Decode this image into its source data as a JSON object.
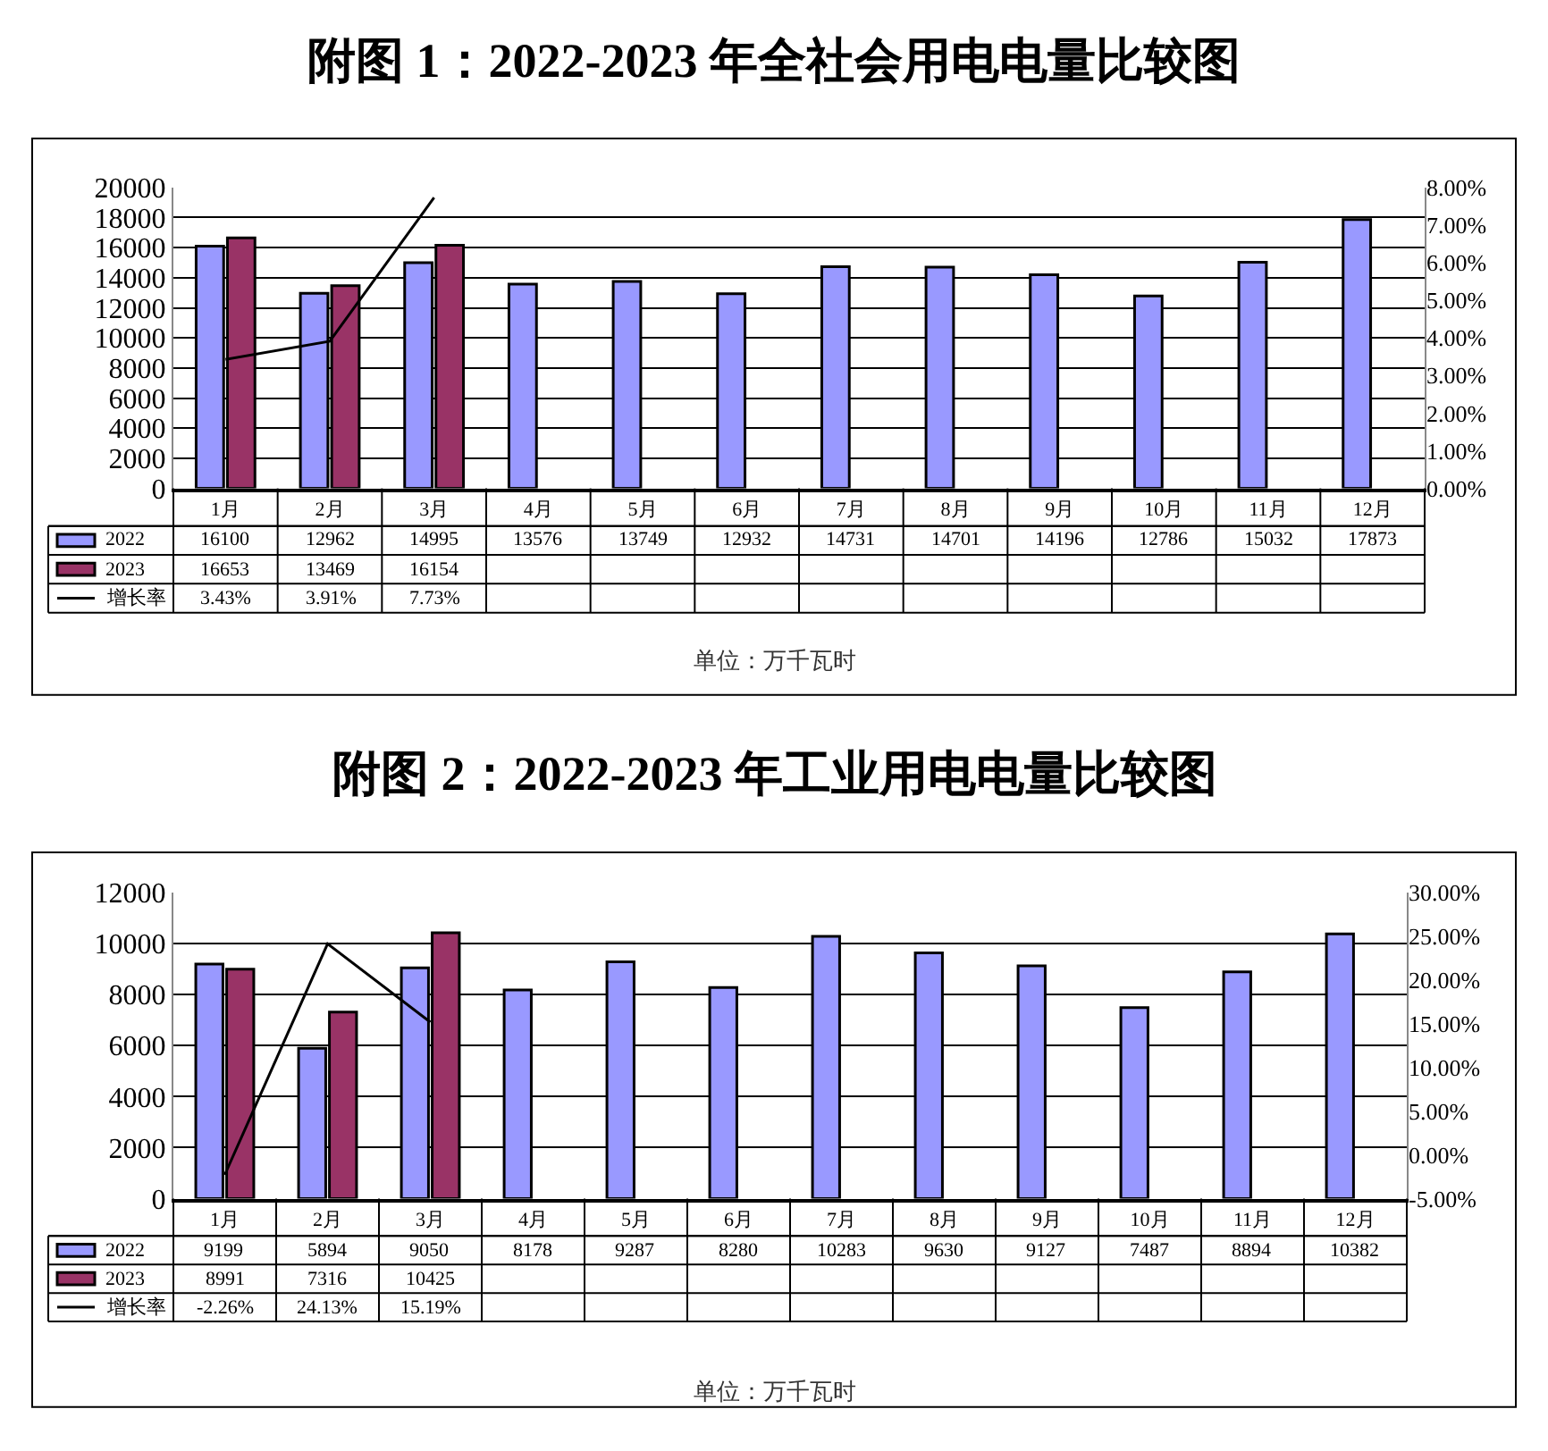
{
  "chart_data": [
    {
      "type": "bar",
      "title": "附图 1：2022-2023 年全社会用电电量比较图",
      "categories": [
        "1月",
        "2月",
        "3月",
        "4月",
        "5月",
        "6月",
        "7月",
        "8月",
        "9月",
        "10月",
        "11月",
        "12月"
      ],
      "series": [
        {
          "name": "2022",
          "color": "#9999ff",
          "values": [
            16100,
            12962,
            14995,
            13576,
            13749,
            12932,
            14731,
            14701,
            14196,
            12786,
            15032,
            17873
          ]
        },
        {
          "name": "2023",
          "color": "#993366",
          "values": [
            16653,
            13469,
            16154,
            null,
            null,
            null,
            null,
            null,
            null,
            null,
            null,
            null
          ]
        },
        {
          "name": "增长率",
          "type": "line",
          "axis": "y2",
          "color": "#000000",
          "values": [
            3.43,
            3.91,
            7.73,
            null,
            null,
            null,
            null,
            null,
            null,
            null,
            null,
            null
          ],
          "value_labels": [
            "3.43%",
            "3.91%",
            "7.73%",
            null,
            null,
            null,
            null,
            null,
            null,
            null,
            null,
            null
          ]
        }
      ],
      "ylim": [
        0,
        20000
      ],
      "yticks": [
        0,
        2000,
        4000,
        6000,
        8000,
        10000,
        12000,
        14000,
        16000,
        18000,
        20000
      ],
      "y2lim": [
        0,
        8
      ],
      "y2ticks": [
        {
          "value": 0,
          "label": "0.00%"
        },
        {
          "value": 1,
          "label": "1.00%"
        },
        {
          "value": 2,
          "label": "2.00%"
        },
        {
          "value": 3,
          "label": "3.00%"
        },
        {
          "value": 4,
          "label": "4.00%"
        },
        {
          "value": 5,
          "label": "5.00%"
        },
        {
          "value": 6,
          "label": "6.00%"
        },
        {
          "value": 7,
          "label": "7.00%"
        },
        {
          "value": 8,
          "label": "8.00%"
        }
      ],
      "grid": "y",
      "legend": "bottom",
      "marker": "none",
      "line_style": "solid",
      "data_labels": true,
      "annotations": [
        "单位：万千瓦时"
      ]
    },
    {
      "type": "bar",
      "title": "附图 2：2022-2023 年工业用电电量比较图",
      "categories": [
        "1月",
        "2月",
        "3月",
        "4月",
        "5月",
        "6月",
        "7月",
        "8月",
        "9月",
        "10月",
        "11月",
        "12月"
      ],
      "series": [
        {
          "name": "2022",
          "color": "#9999ff",
          "values": [
            9199,
            5894,
            9050,
            8178,
            9287,
            8280,
            10283,
            9630,
            9127,
            7487,
            8894,
            10382
          ]
        },
        {
          "name": "2023",
          "color": "#993366",
          "values": [
            8991,
            7316,
            10425,
            null,
            null,
            null,
            null,
            null,
            null,
            null,
            null,
            null
          ]
        },
        {
          "name": "增长率",
          "type": "line",
          "axis": "y2",
          "color": "#000000",
          "values": [
            -2.26,
            24.13,
            15.19,
            null,
            null,
            null,
            null,
            null,
            null,
            null,
            null,
            null
          ],
          "value_labels": [
            "-2.26%",
            "24.13%",
            "15.19%",
            null,
            null,
            null,
            null,
            null,
            null,
            null,
            null,
            null
          ]
        }
      ],
      "ylim": [
        0,
        12000
      ],
      "yticks": [
        0,
        2000,
        4000,
        6000,
        8000,
        10000,
        12000
      ],
      "y2lim": [
        -5,
        30
      ],
      "y2ticks": [
        {
          "value": -5,
          "label": "-5.00%"
        },
        {
          "value": 0,
          "label": "0.00%"
        },
        {
          "value": 5,
          "label": "5.00%"
        },
        {
          "value": 10,
          "label": "10.00%"
        },
        {
          "value": 15,
          "label": "15.00%"
        },
        {
          "value": 20,
          "label": "20.00%"
        },
        {
          "value": 25,
          "label": "25.00%"
        },
        {
          "value": 30,
          "label": "30.00%"
        }
      ],
      "grid": "y",
      "legend": "bottom",
      "marker": "none",
      "line_style": "solid",
      "data_labels": true,
      "annotations": [
        "单位：万千瓦时"
      ]
    }
  ]
}
